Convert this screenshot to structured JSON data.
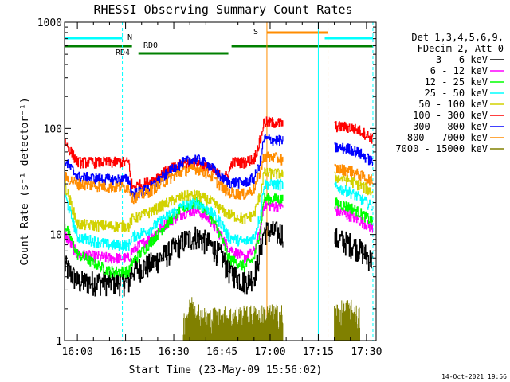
{
  "chart_data": {
    "type": "line",
    "title": "RHESSI Observing Summary Count Rates",
    "xlabel": "Start Time (23-May-09 15:56:02)",
    "ylabel": "Count Rate (s⁻¹ detector⁻¹)",
    "y_scale": "log",
    "ylim": [
      1,
      1000
    ],
    "y_ticks": [
      {
        "value": 1,
        "label": "1"
      },
      {
        "value": 10,
        "label": "10"
      },
      {
        "value": 100,
        "label": "100"
      },
      {
        "value": 1000,
        "label": "1000"
      }
    ],
    "xlim": [
      "15:56",
      "17:33"
    ],
    "x_ticks": [
      "16:00",
      "16:15",
      "16:30",
      "16:45",
      "17:00",
      "17:15",
      "17:30"
    ],
    "legend_header": [
      "Det 1,3,4,5,6,9,",
      "FDecim 2, Att 0"
    ],
    "legend_position": "right",
    "timestamp": "14-Oct-2021 19:56",
    "segments": [
      [
        "15:56",
        "17:04"
      ],
      [
        "17:20",
        "17:32"
      ]
    ],
    "series": [
      {
        "name": "3 - 6 keV",
        "color": "#000000",
        "points": [
          [
            "15:56",
            5.0
          ],
          [
            "16:00",
            3.5
          ],
          [
            "16:10",
            3.5
          ],
          [
            "16:16",
            3.5
          ],
          [
            "16:17",
            4.5
          ],
          [
            "16:22",
            5.0
          ],
          [
            "16:28",
            6.5
          ],
          [
            "16:33",
            8.5
          ],
          [
            "16:37",
            9.5
          ],
          [
            "16:41",
            8.0
          ],
          [
            "16:45",
            6.0
          ],
          [
            "16:47",
            4.5
          ],
          [
            "16:52",
            3.5
          ],
          [
            "16:55",
            4.0
          ],
          [
            "16:57",
            7.0
          ],
          [
            "16:58",
            10.5
          ],
          [
            "17:20",
            9.0
          ],
          [
            "17:25",
            8.0
          ],
          [
            "17:28",
            7.0
          ],
          [
            "17:32",
            5.5
          ]
        ]
      },
      {
        "name": "6 - 12 keV",
        "color": "#ff00ff",
        "points": [
          [
            "15:56",
            10.0
          ],
          [
            "16:00",
            6.5
          ],
          [
            "16:10",
            6.0
          ],
          [
            "16:16",
            6.0
          ],
          [
            "16:17",
            7.0
          ],
          [
            "16:22",
            9.0
          ],
          [
            "16:28",
            13.0
          ],
          [
            "16:33",
            16.0
          ],
          [
            "16:37",
            17.0
          ],
          [
            "16:41",
            14.0
          ],
          [
            "16:45",
            9.5
          ],
          [
            "16:47",
            7.5
          ],
          [
            "16:52",
            6.0
          ],
          [
            "16:55",
            7.0
          ],
          [
            "16:57",
            11.0
          ],
          [
            "16:58",
            19.0
          ],
          [
            "17:20",
            17.0
          ],
          [
            "17:25",
            15.0
          ],
          [
            "17:28",
            13.5
          ],
          [
            "17:32",
            11.5
          ]
        ]
      },
      {
        "name": "12 - 25 keV",
        "color": "#00ff00",
        "points": [
          [
            "15:56",
            12.5
          ],
          [
            "16:00",
            6.5
          ],
          [
            "16:10",
            4.5
          ],
          [
            "16:16",
            4.5
          ],
          [
            "16:17",
            5.5
          ],
          [
            "16:22",
            8.0
          ],
          [
            "16:28",
            13.0
          ],
          [
            "16:33",
            18.0
          ],
          [
            "16:37",
            20.0
          ],
          [
            "16:41",
            16.0
          ],
          [
            "16:45",
            9.0
          ],
          [
            "16:47",
            6.0
          ],
          [
            "16:52",
            5.0
          ],
          [
            "16:55",
            6.0
          ],
          [
            "16:57",
            12.0
          ],
          [
            "16:58",
            22.0
          ],
          [
            "17:20",
            20.0
          ],
          [
            "17:25",
            18.0
          ],
          [
            "17:28",
            16.0
          ],
          [
            "17:32",
            13.0
          ]
        ]
      },
      {
        "name": "25 - 50 keV",
        "color": "#00ffff",
        "points": [
          [
            "15:56",
            24.0
          ],
          [
            "16:00",
            9.5
          ],
          [
            "16:10",
            8.0
          ],
          [
            "16:16",
            8.0
          ],
          [
            "16:17",
            9.5
          ],
          [
            "16:22",
            11.0
          ],
          [
            "16:28",
            15.0
          ],
          [
            "16:33",
            19.0
          ],
          [
            "16:37",
            20.0
          ],
          [
            "16:41",
            17.0
          ],
          [
            "16:45",
            12.5
          ],
          [
            "16:47",
            9.5
          ],
          [
            "16:52",
            8.5
          ],
          [
            "16:55",
            9.5
          ],
          [
            "16:57",
            16.0
          ],
          [
            "16:58",
            30.0
          ],
          [
            "17:20",
            28.0
          ],
          [
            "17:25",
            25.0
          ],
          [
            "17:28",
            22.0
          ],
          [
            "17:32",
            18.0
          ]
        ]
      },
      {
        "name": "50 - 100 keV",
        "color": "#d2d200",
        "points": [
          [
            "15:56",
            30.0
          ],
          [
            "16:00",
            12.5
          ],
          [
            "16:10",
            12.0
          ],
          [
            "16:16",
            12.0
          ],
          [
            "16:17",
            14.0
          ],
          [
            "16:22",
            16.0
          ],
          [
            "16:28",
            20.0
          ],
          [
            "16:33",
            23.0
          ],
          [
            "16:37",
            23.5
          ],
          [
            "16:41",
            21.0
          ],
          [
            "16:45",
            17.0
          ],
          [
            "16:47",
            15.5
          ],
          [
            "16:52",
            14.0
          ],
          [
            "16:55",
            15.5
          ],
          [
            "16:57",
            25.0
          ],
          [
            "16:58",
            38.0
          ],
          [
            "17:20",
            35.0
          ],
          [
            "17:25",
            32.0
          ],
          [
            "17:28",
            29.0
          ],
          [
            "17:32",
            25.0
          ]
        ]
      },
      {
        "name": "100 - 300 keV",
        "color": "#ff0000",
        "points": [
          [
            "15:56",
            75.0
          ],
          [
            "16:00",
            48.0
          ],
          [
            "16:16",
            48.0
          ],
          [
            "16:17",
            28.0
          ],
          [
            "16:22",
            31.0
          ],
          [
            "16:28",
            40.0
          ],
          [
            "16:33",
            47.0
          ],
          [
            "16:37",
            48.0
          ],
          [
            "16:41",
            42.0
          ],
          [
            "16:45",
            35.0
          ],
          [
            "16:47",
            36.0
          ],
          [
            "16:48",
            48.0
          ],
          [
            "16:52",
            48.0
          ],
          [
            "16:55",
            52.0
          ],
          [
            "16:57",
            80.0
          ],
          [
            "16:58",
            115.0
          ],
          [
            "17:20",
            105.0
          ],
          [
            "17:25",
            102.0
          ],
          [
            "17:28",
            95.0
          ],
          [
            "17:32",
            80.0
          ]
        ]
      },
      {
        "name": "300 - 800 keV",
        "color": "#0000ff",
        "points": [
          [
            "15:56",
            50.0
          ],
          [
            "16:00",
            35.0
          ],
          [
            "16:10",
            33.0
          ],
          [
            "16:16",
            33.0
          ],
          [
            "16:17",
            24.0
          ],
          [
            "16:22",
            27.0
          ],
          [
            "16:28",
            38.0
          ],
          [
            "16:33",
            48.0
          ],
          [
            "16:37",
            52.0
          ],
          [
            "16:41",
            45.0
          ],
          [
            "16:45",
            34.0
          ],
          [
            "16:47",
            31.0
          ],
          [
            "16:52",
            31.0
          ],
          [
            "16:55",
            34.0
          ],
          [
            "16:57",
            50.0
          ],
          [
            "16:58",
            80.0
          ],
          [
            "17:20",
            66.0
          ],
          [
            "17:25",
            64.0
          ],
          [
            "17:28",
            58.0
          ],
          [
            "17:32",
            48.0
          ]
        ]
      },
      {
        "name": "800 - 7000 keV",
        "color": "#ff8c00",
        "points": [
          [
            "15:56",
            35.0
          ],
          [
            "16:00",
            30.0
          ],
          [
            "16:10",
            28.0
          ],
          [
            "16:16",
            28.0
          ],
          [
            "16:17",
            22.0
          ],
          [
            "16:22",
            25.0
          ],
          [
            "16:28",
            33.0
          ],
          [
            "16:33",
            40.0
          ],
          [
            "16:37",
            42.0
          ],
          [
            "16:41",
            37.0
          ],
          [
            "16:45",
            28.0
          ],
          [
            "16:47",
            25.0
          ],
          [
            "16:52",
            24.0
          ],
          [
            "16:55",
            27.0
          ],
          [
            "16:57",
            40.0
          ],
          [
            "16:58",
            55.0
          ],
          [
            "17:20",
            42.0
          ],
          [
            "17:25",
            40.0
          ],
          [
            "17:28",
            36.0
          ],
          [
            "17:32",
            32.0
          ]
        ]
      },
      {
        "name": "7000 - 15000 keV",
        "color": "#808000",
        "points": [
          [
            "16:33",
            1.5
          ],
          [
            "16:36",
            2.2
          ],
          [
            "16:39",
            1.6
          ],
          [
            "17:20",
            1.8
          ],
          [
            "17:25",
            1.9
          ],
          [
            "17:28",
            1.6
          ]
        ]
      }
    ],
    "flag_bars": [
      {
        "label": "N",
        "color": "#00ffff",
        "spans": [
          [
            "15:56",
            "16:14"
          ],
          [
            "17:17",
            "17:32"
          ]
        ]
      },
      {
        "label": "S",
        "color": "#ff8c00",
        "spans": [
          [
            "16:59",
            "17:18"
          ]
        ]
      },
      {
        "label": "RD0",
        "color": "#008000",
        "spans": [
          [
            "15:56",
            "16:17"
          ],
          [
            "16:48",
            "17:32"
          ]
        ]
      },
      {
        "label": "RD4",
        "color": "#008000",
        "spans": [
          [
            "16:19",
            "16:47"
          ]
        ]
      }
    ],
    "markers": [
      {
        "time": "15:56",
        "color": "#00ffff",
        "style": "solid"
      },
      {
        "time": "16:14",
        "color": "#00ffff",
        "style": "dashed"
      },
      {
        "time": "16:59",
        "color": "#ff8c00",
        "style": "solid"
      },
      {
        "time": "17:15",
        "color": "#00ffff",
        "style": "solid"
      },
      {
        "time": "17:18",
        "color": "#ff8c00",
        "style": "dashed"
      },
      {
        "time": "17:32",
        "color": "#00ffff",
        "style": "dashed"
      }
    ]
  }
}
